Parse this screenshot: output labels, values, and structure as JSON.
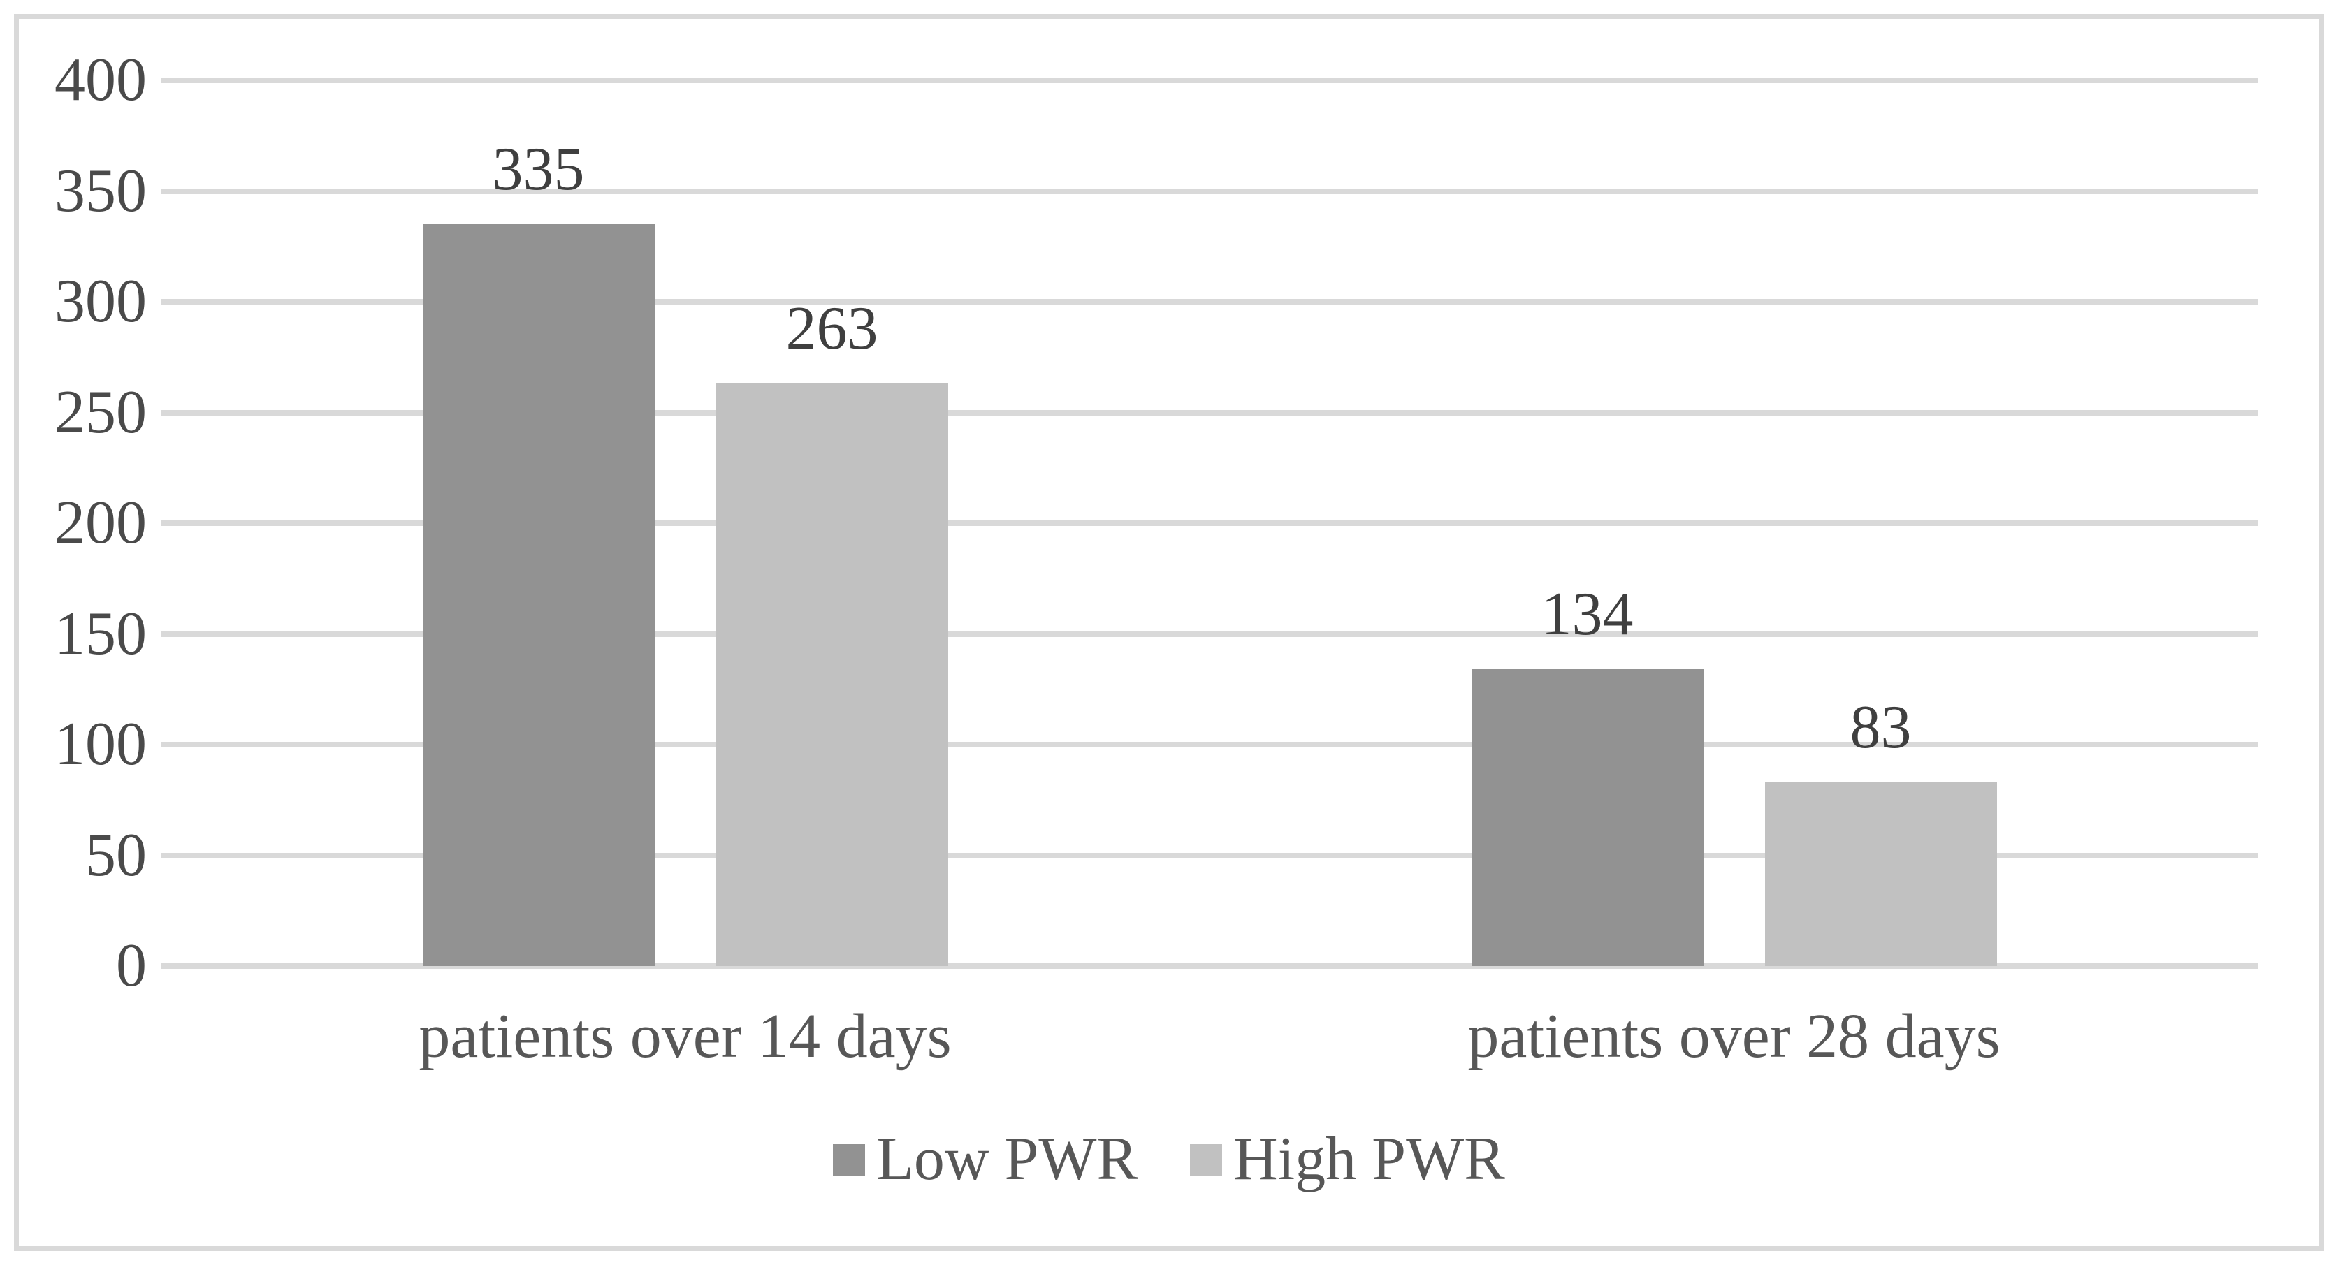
{
  "figure": {
    "background": "#ffffff",
    "frame_border_color": "#d9d9d9"
  },
  "colors": {
    "gridline": "#d9d9d9",
    "axis_text": "#4a4a4a",
    "data_label_text": "#3f3f3f",
    "category_text": "#575757"
  },
  "chart_data": {
    "type": "bar",
    "title": "",
    "xlabel": "",
    "ylabel": "",
    "categories": [
      "patients over 14 days",
      "patients over 28 days"
    ],
    "series": [
      {
        "name": "Low PWR",
        "color": "#929292",
        "values": [
          335,
          134
        ]
      },
      {
        "name": "High PWR",
        "color": "#c1c1c1",
        "values": [
          263,
          83
        ]
      }
    ],
    "data_labels": [
      "335",
      "263",
      "134",
      "83"
    ],
    "ylim": [
      0,
      400
    ],
    "ytick_step": 50,
    "yticks": [
      "400",
      "350",
      "300",
      "250",
      "200",
      "150",
      "100",
      "50",
      "0"
    ],
    "grid": true,
    "legend_position": "bottom"
  }
}
